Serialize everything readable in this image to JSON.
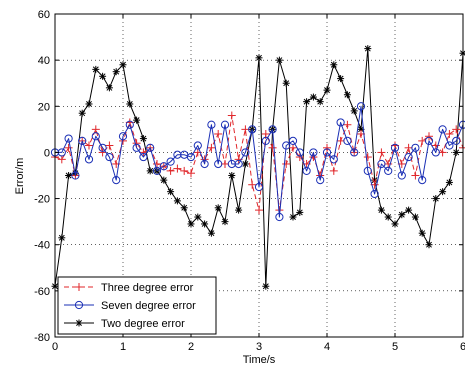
{
  "chart_data": {
    "type": "line",
    "xlabel": "Time/s",
    "ylabel": "Error/m",
    "xlim": [
      0,
      6
    ],
    "ylim": [
      -80,
      60
    ],
    "xticks": [
      0,
      1,
      2,
      3,
      4,
      5,
      6
    ],
    "yticks": [
      -80,
      -60,
      -40,
      -20,
      0,
      20,
      40,
      60
    ],
    "grid": true,
    "legend_position": "bottom-left",
    "x": [
      0,
      0.1,
      0.2,
      0.3,
      0.4,
      0.5,
      0.6,
      0.7,
      0.8,
      0.9,
      1.0,
      1.1,
      1.2,
      1.3,
      1.4,
      1.5,
      1.6,
      1.7,
      1.8,
      1.9,
      2.0,
      2.1,
      2.2,
      2.3,
      2.4,
      2.5,
      2.6,
      2.7,
      2.8,
      2.9,
      3.0,
      3.1,
      3.2,
      3.3,
      3.4,
      3.5,
      3.6,
      3.7,
      3.8,
      3.9,
      4.0,
      4.1,
      4.2,
      4.3,
      4.4,
      4.5,
      4.6,
      4.7,
      4.8,
      4.9,
      5.0,
      5.1,
      5.2,
      5.3,
      5.4,
      5.5,
      5.6,
      5.7,
      5.8,
      5.9,
      6.0
    ],
    "series": [
      {
        "name": "Three degree error",
        "color": "#e0262a",
        "marker": "plus",
        "linestyle": "dashed",
        "values": [
          -2,
          -3,
          2,
          -10,
          5,
          3,
          10,
          0,
          3,
          -5,
          5,
          13,
          4,
          0,
          2,
          -5,
          -6,
          -8,
          -7,
          -8,
          -9,
          0,
          -3,
          2,
          8,
          -5,
          16,
          -3,
          10,
          -14,
          -25,
          8,
          2,
          -25,
          -5,
          2,
          -2,
          -5,
          -2,
          -10,
          2,
          -8,
          5,
          12,
          0,
          8,
          -2,
          -14,
          0,
          -5,
          3,
          -5,
          2,
          -10,
          5,
          7,
          3,
          0,
          8,
          10,
          2
        ]
      },
      {
        "name": "Seven degree error",
        "color": "#1a2fb5",
        "marker": "circle",
        "linestyle": "solid",
        "values": [
          0,
          0,
          6,
          -10,
          5,
          -3,
          7,
          2,
          -2,
          -12,
          7,
          12,
          2,
          -2,
          2,
          -8,
          -6,
          -4,
          -1,
          -1,
          -2,
          3,
          -5,
          12,
          -5,
          12,
          -5,
          -5,
          0,
          10,
          -15,
          5,
          10,
          -28,
          3,
          5,
          0,
          -8,
          0,
          -12,
          0,
          -3,
          13,
          5,
          0,
          20,
          -8,
          -18,
          -5,
          -8,
          2,
          -10,
          -2,
          2,
          -12,
          5,
          0,
          10,
          3,
          5,
          12
        ]
      },
      {
        "name": "Two degree error",
        "color": "#000000",
        "marker": "star",
        "linestyle": "solid",
        "values": [
          -58,
          -37,
          -10,
          -9,
          17,
          21,
          36,
          33,
          28,
          35,
          38,
          21,
          14,
          6,
          -8,
          -8,
          -12,
          -17,
          -21,
          -24,
          -31,
          -28,
          -31,
          -35,
          -24,
          -30,
          -10,
          -25,
          -5,
          10,
          41,
          -58,
          10,
          40,
          30,
          -28,
          -26,
          22,
          24,
          22,
          27,
          38,
          32,
          25,
          18,
          10,
          45,
          -12,
          -25,
          -28,
          -31,
          -27,
          -25,
          -28,
          -35,
          -40,
          -20,
          -17,
          -13,
          0,
          43
        ]
      }
    ]
  }
}
